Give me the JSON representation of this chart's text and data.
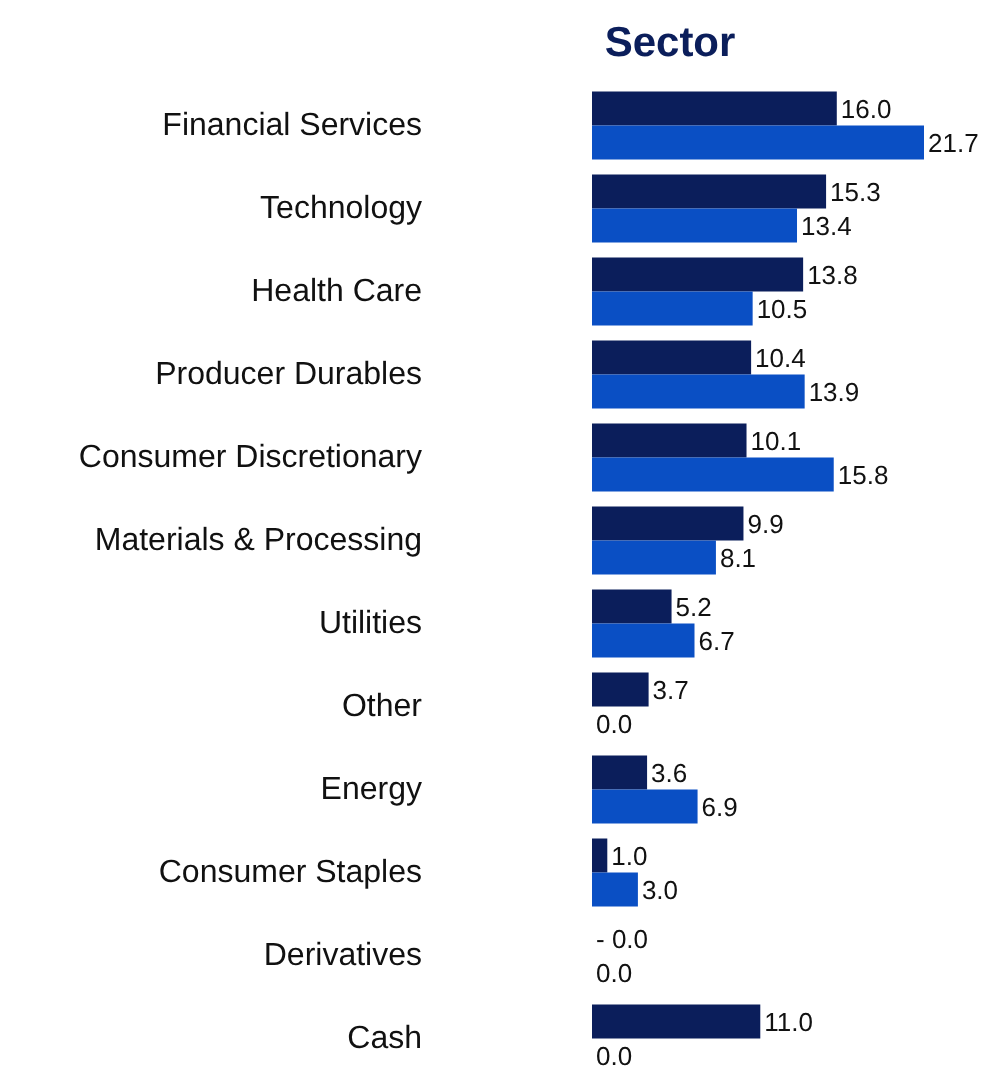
{
  "chart_data": {
    "type": "bar",
    "orientation": "horizontal",
    "title": "Sector",
    "categories": [
      "Financial Services",
      "Technology",
      "Health Care",
      "Producer Durables",
      "Consumer Discretionary",
      "Materials & Processing",
      "Utilities",
      "Other",
      "Energy",
      "Consumer Staples",
      "Derivatives",
      "Cash"
    ],
    "series": [
      {
        "color": "#0b1e5b",
        "values": [
          16.0,
          15.3,
          13.8,
          10.4,
          10.1,
          9.9,
          5.2,
          3.7,
          3.6,
          1.0,
          0,
          11.0
        ],
        "value_labels": [
          "16.0",
          "15.3",
          "13.8",
          "10.4",
          "10.1",
          "9.9",
          "5.2",
          "3.7",
          "3.6",
          "1.0",
          "- 0.0",
          "11.0"
        ]
      },
      {
        "color": "#0a4fc4",
        "values": [
          21.7,
          13.4,
          10.5,
          13.9,
          15.8,
          8.1,
          6.7,
          0.0,
          6.9,
          3.0,
          0.0,
          0.0
        ],
        "value_labels": [
          "21.7",
          "13.4",
          "10.5",
          "13.9",
          "15.8",
          "8.1",
          "6.7",
          "0.0",
          "6.9",
          "3.0",
          "0.0",
          "0.0"
        ]
      }
    ]
  }
}
